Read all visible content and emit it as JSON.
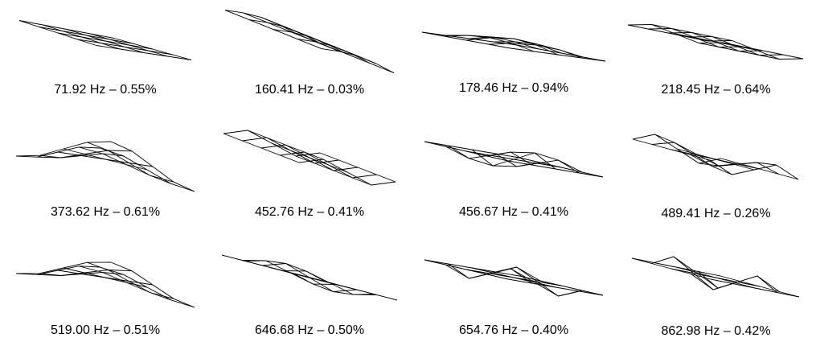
{
  "figure": {
    "stroke_color": "#000000",
    "background": "#ffffff",
    "modes": [
      {
        "label": "71.92 Hz – 0.55%"
      },
      {
        "label": "160.41 Hz – 0.03%"
      },
      {
        "label": "178.46 Hz – 0.94%"
      },
      {
        "label": "218.45 Hz – 0.64%"
      },
      {
        "label": "373.62 Hz – 0.61%"
      },
      {
        "label": "452.76 Hz – 0.41%"
      },
      {
        "label": "456.67 Hz – 0.41%"
      },
      {
        "label": "489.41 Hz – 0.26%"
      },
      {
        "label": "519.00 Hz – 0.51%"
      },
      {
        "label": "646.68 Hz – 0.50%"
      },
      {
        "label": "654.76 Hz – 0.40%"
      },
      {
        "label": "862.98 Hz – 0.42%"
      }
    ]
  }
}
